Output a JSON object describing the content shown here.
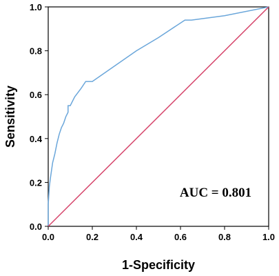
{
  "chart_data": {
    "type": "line",
    "xlabel": "1-Specificity",
    "ylabel": "Sensitivity",
    "xlim": [
      0,
      1
    ],
    "ylim": [
      0,
      1
    ],
    "x_ticks": [
      "0.0",
      "0.2",
      "0.4",
      "0.6",
      "0.8",
      "1.0"
    ],
    "y_ticks": [
      "0.0",
      "0.2",
      "0.4",
      "0.6",
      "0.8",
      "1.0"
    ],
    "grid": false,
    "annotation": "AUC = 0.801",
    "series": [
      {
        "color": "#6aa6da",
        "x": [
          0.0,
          0.0,
          0.005,
          0.01,
          0.02,
          0.03,
          0.04,
          0.05,
          0.06,
          0.07,
          0.08,
          0.09,
          0.09,
          0.1,
          0.12,
          0.15,
          0.17,
          0.2,
          0.3,
          0.4,
          0.5,
          0.62,
          0.65,
          0.8,
          1.0
        ],
        "y": [
          0.0,
          0.1,
          0.18,
          0.22,
          0.29,
          0.33,
          0.38,
          0.42,
          0.45,
          0.47,
          0.5,
          0.52,
          0.55,
          0.55,
          0.59,
          0.63,
          0.66,
          0.66,
          0.73,
          0.8,
          0.86,
          0.94,
          0.94,
          0.96,
          1.0
        ]
      },
      {
        "color": "#d6456b",
        "x": [
          0,
          1
        ],
        "y": [
          0,
          1
        ]
      }
    ]
  }
}
